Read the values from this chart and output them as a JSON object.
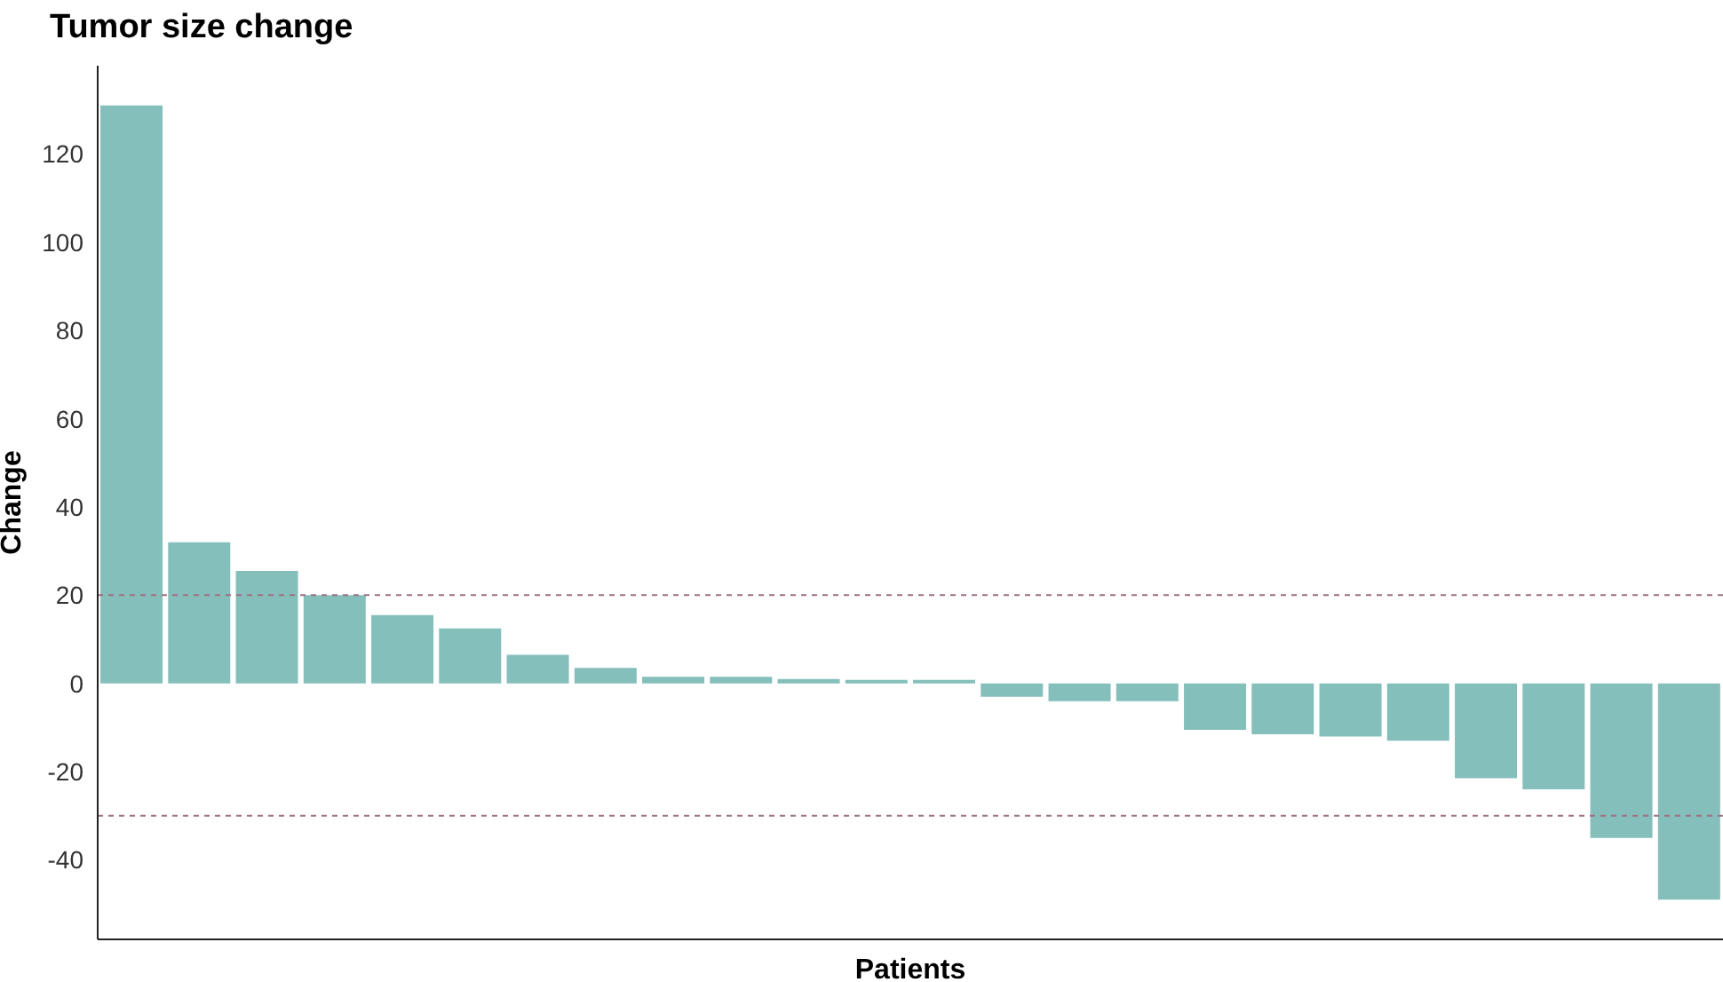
{
  "chart_data": {
    "type": "bar",
    "title": "Tumor size change",
    "xlabel": "Patients",
    "ylabel": "Change",
    "categories": [
      null,
      null,
      null,
      null,
      null,
      null,
      null,
      null,
      null,
      null,
      null,
      null,
      null,
      null,
      null,
      null,
      null,
      null,
      null,
      null,
      null,
      null,
      null,
      null
    ],
    "values": [
      131,
      32,
      25.5,
      20,
      15.5,
      12.5,
      6.5,
      3.5,
      1.5,
      1.5,
      1,
      0.8,
      0.8,
      -3,
      -4,
      -4,
      -10.5,
      -11.5,
      -12,
      -13,
      -21.5,
      -24,
      -35,
      -49
    ],
    "color": "#84bfbc",
    "ylim": [
      -58,
      140
    ],
    "yticks": [
      -40,
      -20,
      0,
      20,
      40,
      60,
      80,
      100,
      120
    ],
    "tick_labels": "y",
    "ref_lines": [
      {
        "axis": "y",
        "value": 20,
        "color": "#a07080",
        "line_style": "dashed"
      },
      {
        "axis": "y",
        "value": -30,
        "color": "#a07080",
        "line_style": "dashed"
      }
    ]
  }
}
